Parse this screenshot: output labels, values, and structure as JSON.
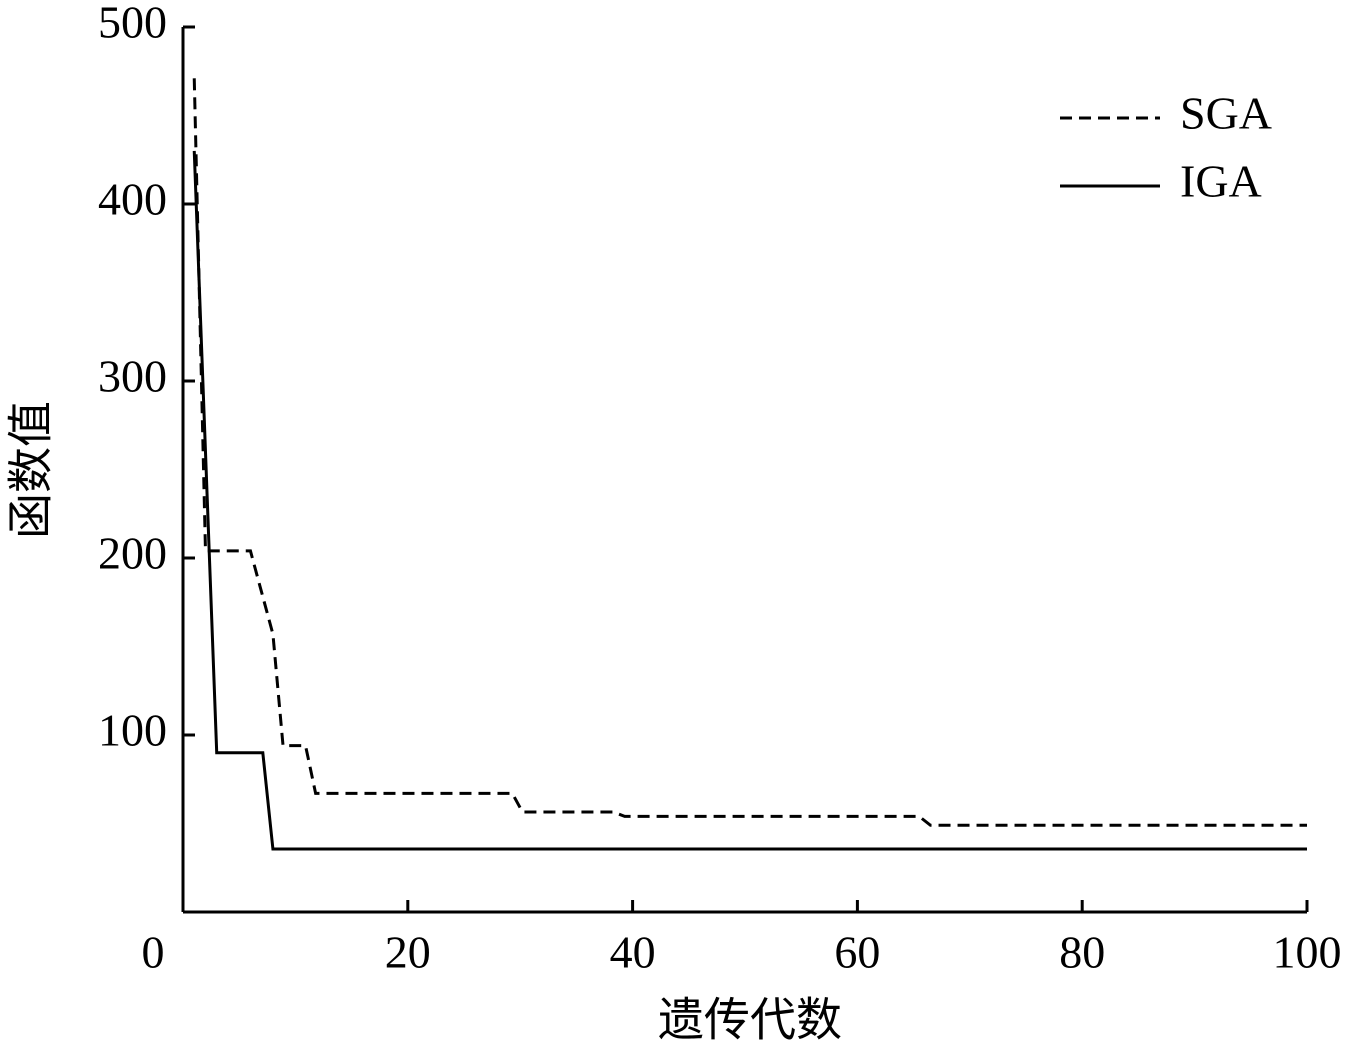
{
  "chart_data": {
    "type": "line",
    "x_label": "遗传代数",
    "y_label": "函数值",
    "xlim": [
      0,
      100
    ],
    "ylim": [
      0,
      500
    ],
    "xticks": [
      0,
      20,
      40,
      60,
      80,
      100
    ],
    "yticks": [
      100,
      200,
      300,
      400,
      500
    ],
    "legend": "upper right",
    "series": [
      {
        "name": "SGA",
        "color": "#000000",
        "dash": true,
        "x": [
          1,
          2,
          6,
          8,
          8.9,
          10.9,
          11.8,
          29.3,
          30.2,
          38.3,
          39.3,
          65.5,
          66.5,
          100
        ],
        "values": [
          471,
          204,
          204,
          157,
          94,
          94,
          67,
          67,
          56.5,
          56.5,
          54,
          54,
          49,
          49
        ]
      },
      {
        "name": "IGA",
        "color": "#000000",
        "dash": false,
        "x": [
          1,
          3,
          7.1,
          8,
          100
        ],
        "values": [
          430,
          90,
          90,
          35.6,
          35.6
        ]
      }
    ]
  }
}
